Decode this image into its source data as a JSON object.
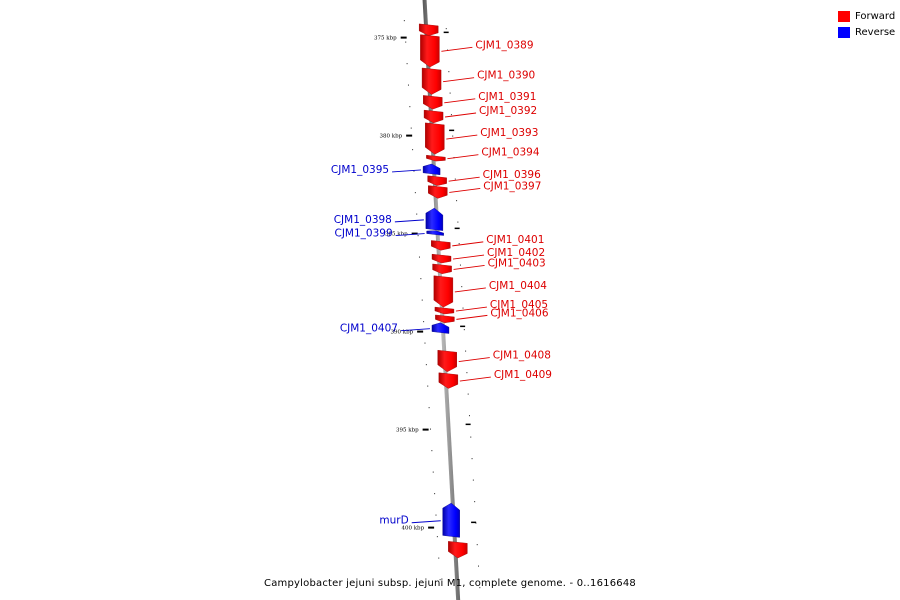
{
  "caption": "Campylobacter jejuni subsp. jejuni M1, complete genome. - 0..1616648",
  "legend": [
    {
      "label": "Forward",
      "color": "#ff0000"
    },
    {
      "label": "Reverse",
      "color": "#0000ff"
    }
  ],
  "scale_ticks": [
    {
      "label": "375 kbp",
      "pos": 375.0
    },
    {
      "label": "380 kbp",
      "pos": 380.0
    },
    {
      "label": "385 kbp",
      "pos": 385.0
    },
    {
      "label": "390 kbp",
      "pos": 390.0
    },
    {
      "label": "395 kbp",
      "pos": 395.0
    },
    {
      "label": "400 kbp",
      "pos": 400.0
    }
  ],
  "genes": [
    {
      "name": "",
      "strand": "forward",
      "start": 374.3,
      "end": 374.85
    },
    {
      "name": "CJM1_0389",
      "strand": "forward",
      "start": 374.85,
      "end": 376.45
    },
    {
      "name": "CJM1_0390",
      "strand": "forward",
      "start": 376.55,
      "end": 377.85
    },
    {
      "name": "CJM1_0391",
      "strand": "forward",
      "start": 377.95,
      "end": 378.6
    },
    {
      "name": "CJM1_0392",
      "strand": "forward",
      "start": 378.7,
      "end": 379.3
    },
    {
      "name": "CJM1_0393",
      "strand": "forward",
      "start": 379.35,
      "end": 380.9
    },
    {
      "name": "CJM1_0394",
      "strand": "forward",
      "start": 381.0,
      "end": 381.25
    },
    {
      "name": "CJM1_0395",
      "strand": "reverse",
      "start": 381.5,
      "end": 382.0
    },
    {
      "name": "CJM1_0396",
      "strand": "forward",
      "start": 382.05,
      "end": 382.5
    },
    {
      "name": "CJM1_0397",
      "strand": "forward",
      "start": 382.55,
      "end": 383.15
    },
    {
      "name": "CJM1_0398",
      "strand": "reverse",
      "start": 383.75,
      "end": 384.85
    },
    {
      "name": "CJM1_0399",
      "strand": "reverse",
      "start": 384.9,
      "end": 385.1
    },
    {
      "name": "CJM1_0401",
      "strand": "forward",
      "start": 385.35,
      "end": 385.8
    },
    {
      "name": "CJM1_0402",
      "strand": "forward",
      "start": 386.05,
      "end": 386.45
    },
    {
      "name": "CJM1_0403",
      "strand": "forward",
      "start": 386.55,
      "end": 387.0
    },
    {
      "name": "CJM1_0404",
      "strand": "forward",
      "start": 387.15,
      "end": 388.7
    },
    {
      "name": "CJM1_0405",
      "strand": "forward",
      "start": 388.75,
      "end": 389.05
    },
    {
      "name": "CJM1_0406",
      "strand": "forward",
      "start": 389.15,
      "end": 389.5
    },
    {
      "name": "CJM1_0407",
      "strand": "reverse",
      "start": 389.6,
      "end": 390.1
    },
    {
      "name": "CJM1_0408",
      "strand": "forward",
      "start": 390.95,
      "end": 392.0
    },
    {
      "name": "CJM1_0409",
      "strand": "forward",
      "start": 392.1,
      "end": 392.85
    },
    {
      "name": "murD",
      "strand": "reverse",
      "start": 398.8,
      "end": 400.5
    },
    {
      "name": "",
      "strand": "forward",
      "start": 400.7,
      "end": 401.5
    }
  ]
}
